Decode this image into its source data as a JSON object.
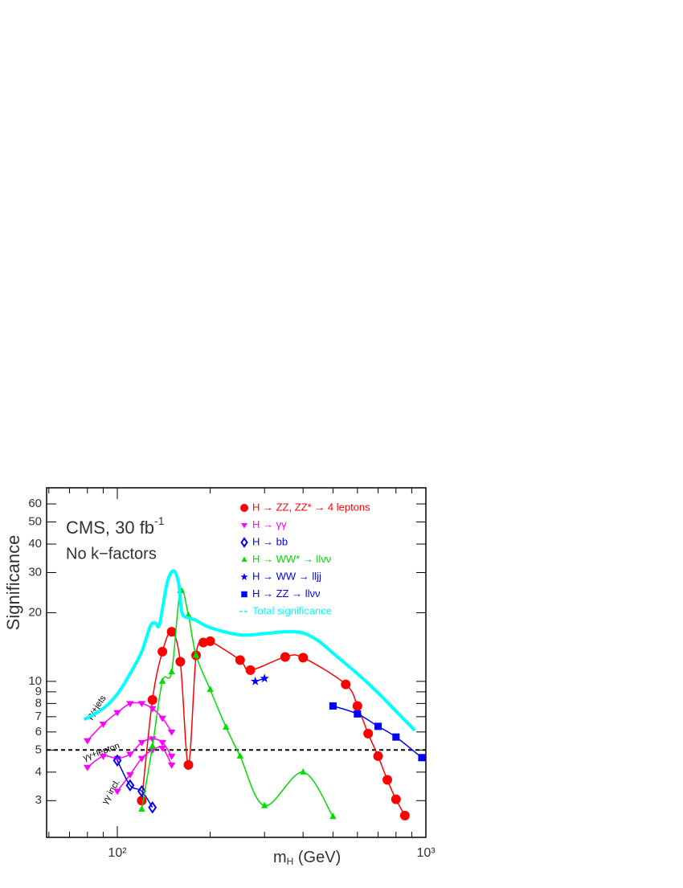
{
  "chart_data": {
    "type": "line",
    "annotations": {
      "experiment": "CMS, 30 fb",
      "experiment_sup": "-1",
      "note": "No k−factors",
      "gg_jets": "γγ+jets",
      "gg_lepton": "γγ+lepton",
      "gg_incl": "γγ incl."
    },
    "xlabel": [
      "m",
      "H",
      " (GeV)"
    ],
    "ylabel": "Significance",
    "xscale": "log",
    "yscale": "log",
    "xlim": [
      59,
      1000
    ],
    "ylim": [
      2.07,
      70.6
    ],
    "xticks": [
      {
        "value": 100,
        "label": "10²"
      },
      {
        "value": 1000,
        "label": "10³"
      }
    ],
    "xminorticks": [
      60,
      70,
      80,
      90,
      200,
      300,
      400,
      500,
      600,
      700,
      800,
      900
    ],
    "yticks": [
      3,
      4,
      5,
      6,
      7,
      8,
      9,
      10,
      20,
      30,
      40,
      50,
      60
    ],
    "reference_line": 5,
    "legend": "upper right",
    "series": [
      {
        "name": "H → ZZ, ZZ* → 4 leptons",
        "color": "#ff0000",
        "marker": "circle",
        "x": [
          120,
          130,
          140,
          150,
          160,
          170,
          180,
          190,
          200,
          250,
          270,
          350,
          400,
          550,
          600,
          650,
          700,
          750,
          800,
          855
        ],
        "values": [
          3.0,
          8.3,
          13.5,
          16.5,
          12.2,
          4.3,
          13.0,
          14.8,
          15.0,
          12.4,
          11.2,
          12.8,
          12.7,
          9.7,
          7.8,
          5.9,
          4.7,
          3.7,
          3.04,
          2.58
        ]
      },
      {
        "name": "H → γγ",
        "color": "#ff00ff",
        "marker": "triangle-down",
        "x": [
          80,
          90,
          100,
          110,
          120,
          130,
          140,
          150,
          null,
          80,
          90,
          100,
          110,
          120,
          130,
          140,
          150,
          null,
          100,
          110,
          120,
          130,
          140,
          150
        ],
        "values": [
          5.5,
          6.5,
          7.3,
          8.0,
          8.0,
          7.6,
          6.9,
          6.0,
          null,
          4.2,
          4.7,
          4.6,
          4.8,
          5.4,
          5.6,
          5.4,
          4.7,
          null,
          3.3,
          3.9,
          4.6,
          5.0,
          5.1,
          4.3
        ]
      },
      {
        "name": "H → bb",
        "color": "#0000ff",
        "marker": "diamond",
        "x": [
          100,
          110,
          120,
          130
        ],
        "values": [
          4.5,
          3.5,
          3.3,
          2.8
        ]
      },
      {
        "name": "H → WW* → llνν",
        "color": "#00dd00",
        "marker": "triangle-up",
        "x": [
          120,
          130,
          140,
          150,
          160,
          170,
          180,
          200,
          225,
          250,
          300,
          400,
          500
        ],
        "values": [
          2.75,
          5.2,
          10.0,
          11.0,
          25.0,
          19.5,
          13.0,
          9.2,
          6.3,
          4.7,
          2.85,
          4.0,
          2.55
        ]
      },
      {
        "name": "H → WW → lljj",
        "color": "#0000ff",
        "marker": "star",
        "x": [
          280,
          300
        ],
        "values": [
          10.0,
          10.3
        ]
      },
      {
        "name": "H → ZZ → llνν",
        "color": "#0000ff",
        "marker": "square",
        "x": [
          500,
          600,
          700,
          800,
          970
        ],
        "values": [
          7.8,
          7.2,
          6.35,
          5.7,
          4.63
        ]
      },
      {
        "name": "Total significance",
        "color": "#00ffff",
        "marker": "none",
        "x": [
          78,
          90,
          100,
          110,
          120,
          128,
          133,
          137,
          145,
          152,
          158,
          162,
          170,
          180,
          200,
          250,
          300,
          350,
          400,
          450,
          500,
          600,
          700,
          800,
          920
        ],
        "values": [
          6.8,
          7.6,
          8.8,
          10.8,
          13.5,
          17.5,
          18.0,
          17.8,
          27,
          30.5,
          27,
          20,
          19,
          18.5,
          17.2,
          16.0,
          16.2,
          16.5,
          16.3,
          15,
          13.3,
          10.8,
          8.9,
          7.4,
          6.1
        ]
      }
    ]
  }
}
